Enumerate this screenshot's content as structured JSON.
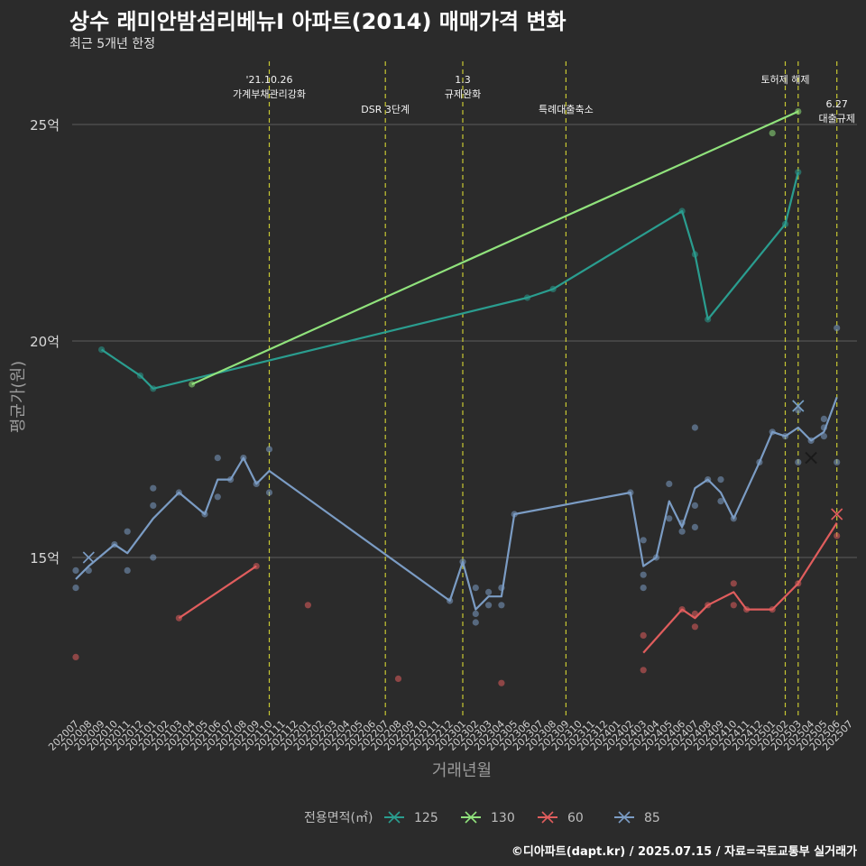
{
  "header": {
    "title": "상수 래미안밤섬리베뉴Ⅰ 아파트(2014) 매매가격 변화",
    "subtitle": "최근 5개년 한정",
    "caption": "©디아파트(dapt.kr) / 2025.07.15 / 자료=국토교통부 실거래가"
  },
  "chart_data": {
    "type": "line",
    "xlabel": "거래년월",
    "ylabel": "평균가(원)",
    "ylim": [
      11.5,
      26.5
    ],
    "y_ticks": [
      15,
      20,
      25
    ],
    "y_tick_labels": [
      "15억",
      "20억",
      "25억"
    ],
    "grid": "horizontal major",
    "legend": {
      "title": "전용면적(㎡)",
      "position": "bottom",
      "entries": [
        "125",
        "130",
        "60",
        "85"
      ]
    },
    "x_categories": [
      "202007",
      "202008",
      "202009",
      "202010",
      "202011",
      "202012",
      "202101",
      "202102",
      "202103",
      "202104",
      "202105",
      "202106",
      "202107",
      "202108",
      "202109",
      "202110",
      "202111",
      "202112",
      "202201",
      "202202",
      "202203",
      "202204",
      "202205",
      "202206",
      "202207",
      "202208",
      "202209",
      "202210",
      "202211",
      "202212",
      "202301",
      "202302",
      "202303",
      "202304",
      "202305",
      "202306",
      "202307",
      "202308",
      "202309",
      "202310",
      "202311",
      "202312",
      "202401",
      "202402",
      "202403",
      "202404",
      "202405",
      "202406",
      "202407",
      "202408",
      "202409",
      "202410",
      "202411",
      "202412",
      "202501",
      "202502",
      "202503",
      "202504",
      "202505",
      "202506",
      "202507"
    ],
    "events": [
      {
        "x": "202110",
        "label": "'21.10.26\n가계부채관리강화",
        "row": 0
      },
      {
        "x": "202207",
        "label": "DSR 3단계",
        "row": 1
      },
      {
        "x": "202301",
        "label": "1.3\n규제완화",
        "row": 0
      },
      {
        "x": "202309",
        "label": "특례대출축소",
        "row": 1
      },
      {
        "x": "202502",
        "label": "토허제 해제",
        "row": 0
      },
      {
        "x": "202503",
        "label": "",
        "row": 0
      },
      {
        "x": "202506",
        "label": "6.27\n대출규제",
        "row": 2
      }
    ],
    "series": [
      {
        "name": "125",
        "color": "#2a9d8f",
        "line": [
          [
            "202009",
            19.8
          ],
          [
            "202012",
            19.2
          ],
          [
            "202101",
            18.9
          ],
          [
            "202306",
            21.0
          ],
          [
            "202308",
            21.2
          ],
          [
            "202406",
            23.0
          ],
          [
            "202407",
            22.0
          ],
          [
            "202408",
            20.5
          ],
          [
            "202502",
            22.7
          ],
          [
            "202503",
            23.9
          ]
        ],
        "points": [
          [
            "202009",
            19.8
          ],
          [
            "202012",
            19.2
          ],
          [
            "202101",
            18.9
          ],
          [
            "202306",
            21.0
          ],
          [
            "202308",
            21.2
          ],
          [
            "202406",
            23.0
          ],
          [
            "202407",
            22.0
          ],
          [
            "202408",
            20.5
          ],
          [
            "202502",
            22.7
          ],
          [
            "202503",
            23.9
          ]
        ],
        "crosses": [
          [
            "202503",
            18.5
          ]
        ]
      },
      {
        "name": "130",
        "color": "#90e27c",
        "line": [
          [
            "202104",
            19.0
          ],
          [
            "202503",
            25.3
          ]
        ],
        "points": [
          [
            "202104",
            19.0
          ],
          [
            "202501",
            24.8
          ],
          [
            "202503",
            25.3
          ]
        ],
        "crosses": []
      },
      {
        "name": "60",
        "color": "#e05d5d",
        "line": [
          [
            "202103",
            13.6
          ],
          [
            "202109",
            14.8
          ],
          null,
          [
            "202403",
            12.8
          ],
          [
            "202406",
            13.8
          ],
          [
            "202407",
            13.6
          ],
          [
            "202408",
            13.9
          ],
          [
            "202410",
            14.2
          ],
          [
            "202411",
            13.8
          ],
          [
            "202501",
            13.8
          ],
          [
            "202503",
            14.4
          ],
          [
            "202506",
            15.8
          ]
        ],
        "points": [
          [
            "202007",
            12.7
          ],
          [
            "202103",
            13.6
          ],
          [
            "202109",
            14.8
          ],
          [
            "202201",
            13.9
          ],
          [
            "202208",
            12.2
          ],
          [
            "202304",
            12.1
          ],
          [
            "202403",
            13.2
          ],
          [
            "202403",
            12.4
          ],
          [
            "202406",
            13.8
          ],
          [
            "202407",
            13.7
          ],
          [
            "202407",
            13.4
          ],
          [
            "202408",
            13.9
          ],
          [
            "202410",
            14.4
          ],
          [
            "202410",
            13.9
          ],
          [
            "202411",
            13.8
          ],
          [
            "202501",
            13.8
          ],
          [
            "202503",
            14.4
          ],
          [
            "202506",
            15.5
          ]
        ],
        "crosses": [
          [
            "202506",
            16.0
          ]
        ]
      },
      {
        "name": "85",
        "color": "#7b9cc4",
        "line": [
          [
            "202007",
            14.5
          ],
          [
            "202008",
            14.8
          ],
          [
            "202010",
            15.3
          ],
          [
            "202011",
            15.1
          ],
          [
            "202101",
            15.9
          ],
          [
            "202103",
            16.5
          ],
          [
            "202105",
            16.0
          ],
          [
            "202106",
            16.8
          ],
          [
            "202107",
            16.8
          ],
          [
            "202108",
            17.3
          ],
          [
            "202109",
            16.7
          ],
          [
            "202110",
            17.0
          ],
          [
            "202212",
            14.0
          ],
          [
            "202301",
            14.9
          ],
          [
            "202302",
            13.8
          ],
          [
            "202303",
            14.1
          ],
          [
            "202304",
            14.1
          ],
          [
            "202305",
            16.0
          ],
          [
            "202402",
            16.5
          ],
          [
            "202403",
            14.8
          ],
          [
            "202404",
            15.0
          ],
          [
            "202405",
            16.3
          ],
          [
            "202406",
            15.7
          ],
          [
            "202407",
            16.6
          ],
          [
            "202408",
            16.8
          ],
          [
            "202409",
            16.5
          ],
          [
            "202410",
            15.9
          ],
          [
            "202412",
            17.2
          ],
          [
            "202501",
            17.9
          ],
          [
            "202502",
            17.8
          ],
          [
            "202503",
            18.0
          ],
          [
            "202504",
            17.7
          ],
          [
            "202505",
            17.9
          ],
          [
            "202506",
            18.7
          ]
        ],
        "points": [
          [
            "202007",
            14.7
          ],
          [
            "202007",
            14.3
          ],
          [
            "202008",
            14.7
          ],
          [
            "202010",
            15.3
          ],
          [
            "202011",
            15.6
          ],
          [
            "202011",
            14.7
          ],
          [
            "202101",
            16.6
          ],
          [
            "202101",
            16.2
          ],
          [
            "202101",
            15.0
          ],
          [
            "202103",
            16.5
          ],
          [
            "202105",
            16.0
          ],
          [
            "202106",
            17.3
          ],
          [
            "202106",
            16.4
          ],
          [
            "202107",
            16.8
          ],
          [
            "202108",
            17.3
          ],
          [
            "202109",
            16.7
          ],
          [
            "202110",
            17.5
          ],
          [
            "202110",
            16.5
          ],
          [
            "202212",
            14.0
          ],
          [
            "202301",
            14.9
          ],
          [
            "202302",
            14.3
          ],
          [
            "202302",
            13.7
          ],
          [
            "202302",
            13.5
          ],
          [
            "202303",
            14.2
          ],
          [
            "202303",
            13.9
          ],
          [
            "202304",
            14.3
          ],
          [
            "202304",
            13.9
          ],
          [
            "202305",
            16.0
          ],
          [
            "202402",
            16.5
          ],
          [
            "202403",
            15.4
          ],
          [
            "202403",
            14.6
          ],
          [
            "202403",
            14.3
          ],
          [
            "202404",
            15.0
          ],
          [
            "202405",
            16.7
          ],
          [
            "202405",
            15.9
          ],
          [
            "202406",
            15.8
          ],
          [
            "202406",
            15.6
          ],
          [
            "202407",
            18.0
          ],
          [
            "202407",
            16.2
          ],
          [
            "202407",
            15.7
          ],
          [
            "202408",
            16.8
          ],
          [
            "202409",
            16.8
          ],
          [
            "202409",
            16.3
          ],
          [
            "202410",
            15.9
          ],
          [
            "202412",
            17.2
          ],
          [
            "202501",
            17.9
          ],
          [
            "202502",
            17.8
          ],
          [
            "202503",
            18.4
          ],
          [
            "202503",
            17.2
          ],
          [
            "202504",
            17.7
          ],
          [
            "202505",
            18.2
          ],
          [
            "202505",
            17.8
          ],
          [
            "202505",
            18.0
          ],
          [
            "202506",
            20.3
          ],
          [
            "202506",
            17.2
          ]
        ],
        "crosses": [
          [
            "202008",
            15.0
          ],
          [
            "202503",
            18.5
          ]
        ]
      }
    ],
    "extra_cross": {
      "x": "202504",
      "y": 17.3,
      "color": "#1a1a1a"
    }
  }
}
